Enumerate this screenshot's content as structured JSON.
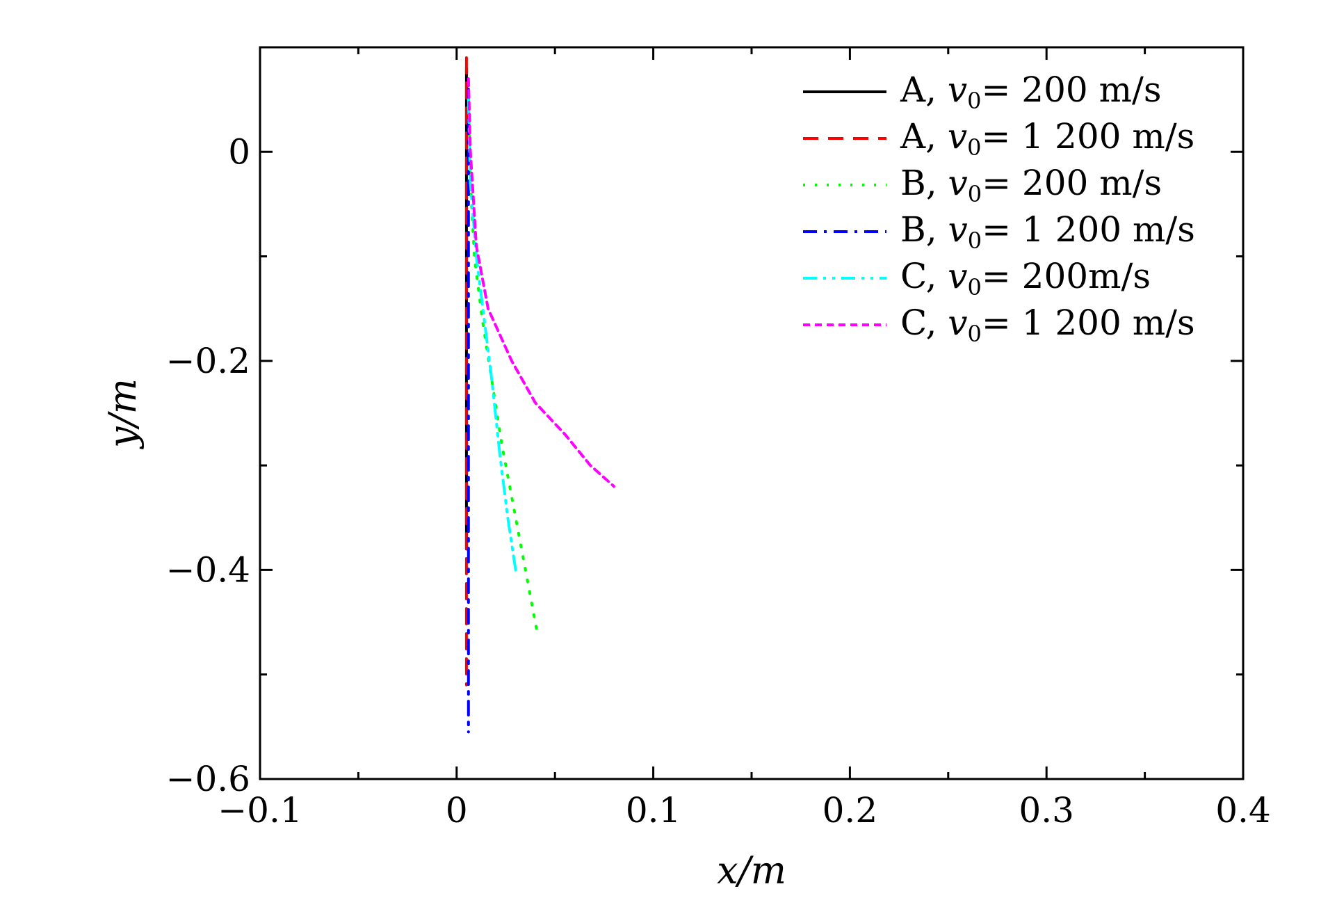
{
  "chart_data": {
    "type": "line",
    "xlabel": "x/m",
    "ylabel": "y/m",
    "xlim": [
      -0.1,
      0.4
    ],
    "ylim": [
      -0.6,
      0.1
    ],
    "x_ticks": [
      -0.1,
      0,
      0.1,
      0.2,
      0.3,
      0.4
    ],
    "x_tick_labels": [
      "−0.1",
      "0",
      "0.1",
      "0.2",
      "0.3",
      "0.4"
    ],
    "y_ticks": [
      -0.6,
      -0.4,
      -0.2,
      0
    ],
    "y_tick_labels": [
      "−0.6",
      "−0.4",
      "−0.2",
      "0"
    ],
    "grid": false,
    "legend_position": "top-right",
    "series": [
      {
        "name": "A, v0= 200 m/s",
        "color": "#000000",
        "dash": "solid",
        "x": [
          0.005,
          0.005,
          0.005,
          0.005,
          0.005,
          0.005
        ],
        "y": [
          0.08,
          0.0,
          -0.1,
          -0.2,
          -0.3,
          -0.38
        ]
      },
      {
        "name": "A, v0= 1 200 m/s",
        "color": "#ff0000",
        "dash": "dashed",
        "x": [
          0.005,
          0.005,
          0.005,
          0.005,
          0.005,
          0.005,
          0.005
        ],
        "y": [
          0.09,
          0.0,
          -0.1,
          -0.2,
          -0.3,
          -0.4,
          -0.51
        ]
      },
      {
        "name": "B, v0= 200 m/s",
        "color": "#00ff00",
        "dash": "dotted",
        "x": [
          0.006,
          0.007,
          0.009,
          0.013,
          0.018,
          0.023,
          0.029,
          0.035,
          0.041
        ],
        "y": [
          0.05,
          -0.03,
          -0.1,
          -0.16,
          -0.22,
          -0.28,
          -0.34,
          -0.4,
          -0.46
        ]
      },
      {
        "name": "B, v0= 1 200 m/s",
        "color": "#0000ff",
        "dash": "dashdot",
        "x": [
          0.006,
          0.006,
          0.006,
          0.006,
          0.006,
          0.006,
          0.006,
          0.006
        ],
        "y": [
          0.06,
          0.0,
          -0.1,
          -0.2,
          -0.3,
          -0.4,
          -0.5,
          -0.555
        ]
      },
      {
        "name": "C, v0= 200m/s",
        "color": "#00ffff",
        "dash": "dashdotdot",
        "x": [
          0.006,
          0.007,
          0.01,
          0.014,
          0.018,
          0.022,
          0.026,
          0.03
        ],
        "y": [
          0.05,
          -0.03,
          -0.1,
          -0.16,
          -0.22,
          -0.29,
          -0.35,
          -0.4
        ]
      },
      {
        "name": "C, v0= 1 200 m/s",
        "color": "#ff00ff",
        "dash": "shortdash",
        "x": [
          0.006,
          0.007,
          0.01,
          0.016,
          0.028,
          0.04,
          0.055,
          0.068,
          0.08
        ],
        "y": [
          0.07,
          0.0,
          -0.09,
          -0.15,
          -0.2,
          -0.24,
          -0.27,
          -0.3,
          -0.32
        ]
      }
    ]
  }
}
